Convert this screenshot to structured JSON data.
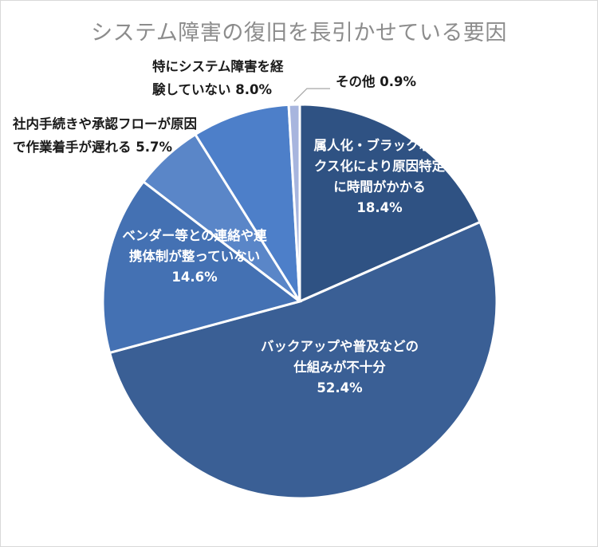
{
  "chart_data": {
    "type": "pie",
    "title": "システム障害の復旧を長引かせている要因",
    "slices": [
      {
        "label_lines": [
          "属人化・ブラックボッ",
          "クス化により原因特定",
          "に時間がかかる"
        ],
        "percent_text": "18.4%",
        "value": 18.4,
        "color": "#2f5283",
        "inside": true
      },
      {
        "label_lines": [
          "バックアップや普及などの",
          "仕組みが不十分"
        ],
        "percent_text": "52.4%",
        "value": 52.4,
        "color": "#3a5f95",
        "inside": true
      },
      {
        "label_lines": [
          "ベンダー等との連絡や連",
          "携体制が整っていない"
        ],
        "percent_text": "14.6%",
        "value": 14.6,
        "color": "#4471b3",
        "inside": true
      },
      {
        "label_lines": [
          "社内手続きや承認フローが原因",
          "で作業着手が遅れる"
        ],
        "percent_text": "5.7%",
        "value": 5.7,
        "color": "#5a86c8",
        "inside": false
      },
      {
        "label_lines": [
          "特にシステム障害を経",
          "験していない"
        ],
        "percent_text": "8.0%",
        "value": 8.0,
        "color": "#4d7fc9",
        "inside": false
      },
      {
        "label_lines": [
          "その他"
        ],
        "percent_text": "0.9%",
        "value": 0.9,
        "color": "#a7b5de",
        "inside": false
      }
    ]
  }
}
